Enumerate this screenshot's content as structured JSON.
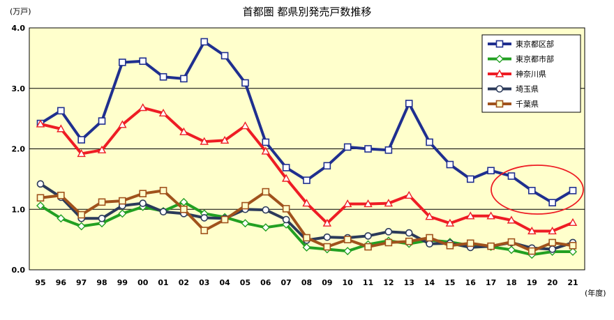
{
  "chart_data": {
    "type": "line",
    "title": "首都圏 都県別発売戸数推移",
    "ylabel": "(万戸)",
    "xlabel": "(年度)",
    "ylim": [
      0,
      4
    ],
    "yticks": [
      "0.0",
      "1.0",
      "2.0",
      "3.0",
      "4.0"
    ],
    "categories": [
      "95",
      "96",
      "97",
      "98",
      "99",
      "00",
      "01",
      "02",
      "03",
      "04",
      "05",
      "06",
      "07",
      "08",
      "09",
      "10",
      "11",
      "12",
      "13",
      "14",
      "15",
      "16",
      "17",
      "18",
      "19",
      "20",
      "21"
    ],
    "grid": true,
    "legend_position": "top-right",
    "series": [
      {
        "name": "東京都区部",
        "color": "#1f2f8f",
        "marker": "square",
        "values": [
          2.42,
          2.63,
          2.15,
          2.46,
          3.43,
          3.45,
          3.19,
          3.16,
          3.77,
          3.54,
          3.09,
          2.11,
          1.69,
          1.48,
          1.72,
          2.03,
          2.0,
          1.98,
          2.75,
          2.11,
          1.74,
          1.5,
          1.64,
          1.55,
          1.31,
          1.11,
          1.31
        ]
      },
      {
        "name": "東京都市部",
        "color": "#22a022",
        "marker": "diamond",
        "values": [
          1.06,
          0.85,
          0.72,
          0.77,
          0.93,
          1.04,
          0.97,
          1.12,
          0.93,
          0.87,
          0.77,
          0.7,
          0.75,
          0.37,
          0.34,
          0.31,
          0.42,
          0.48,
          0.43,
          0.49,
          0.46,
          0.4,
          0.38,
          0.33,
          0.25,
          0.3,
          0.3
        ]
      },
      {
        "name": "神奈川県",
        "color": "#ee1c24",
        "marker": "triangle",
        "values": [
          2.41,
          2.33,
          1.92,
          1.98,
          2.4,
          2.68,
          2.59,
          2.28,
          2.12,
          2.14,
          2.38,
          1.96,
          1.51,
          1.1,
          0.77,
          1.09,
          1.09,
          1.1,
          1.23,
          0.88,
          0.77,
          0.89,
          0.89,
          0.82,
          0.64,
          0.64,
          0.78
        ]
      },
      {
        "name": "埼玉県",
        "color": "#2b3a5a",
        "marker": "circle",
        "values": [
          1.42,
          1.2,
          0.85,
          0.85,
          1.06,
          1.1,
          0.96,
          0.93,
          0.86,
          0.85,
          1.0,
          0.99,
          0.83,
          0.49,
          0.54,
          0.53,
          0.56,
          0.63,
          0.61,
          0.43,
          0.44,
          0.37,
          0.39,
          0.45,
          0.36,
          0.34,
          0.45
        ]
      },
      {
        "name": "千葉県",
        "color": "#a0521c",
        "marker": "square-open",
        "values": [
          1.19,
          1.23,
          0.91,
          1.12,
          1.14,
          1.26,
          1.31,
          1.0,
          0.65,
          0.83,
          1.06,
          1.29,
          1.01,
          0.53,
          0.38,
          0.5,
          0.38,
          0.45,
          0.47,
          0.53,
          0.4,
          0.44,
          0.39,
          0.46,
          0.31,
          0.45,
          0.4
        ]
      }
    ]
  },
  "colors": {
    "plot_background": "#ffffcc",
    "grid": "#000000",
    "highlight_ellipse": "#ee1c24"
  }
}
